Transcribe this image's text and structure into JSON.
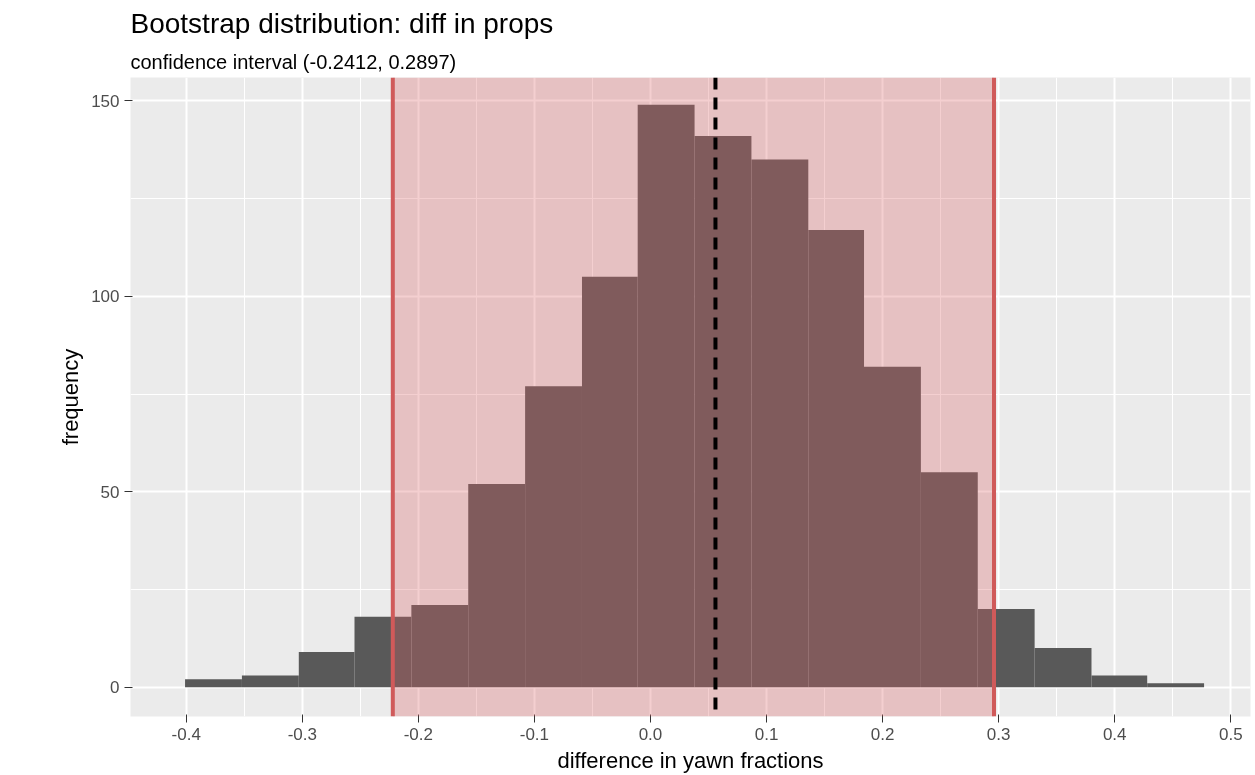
{
  "chart_data": {
    "type": "histogram",
    "title": "Bootstrap distribution: diff in props",
    "subtitle": "confidence interval (-0.2412, 0.2897)",
    "xlabel": "difference in yawn fractions",
    "ylabel": "frequency",
    "bins": [
      -0.401,
      -0.352,
      -0.303,
      -0.255,
      -0.206,
      -0.157,
      -0.108,
      -0.059,
      -0.011,
      0.038,
      0.087,
      0.136,
      0.184,
      0.233,
      0.282,
      0.331,
      0.38,
      0.428,
      0.477
    ],
    "values": [
      2,
      3,
      9,
      18,
      21,
      52,
      77,
      105,
      149,
      141,
      135,
      117,
      82,
      55,
      20,
      10,
      3,
      1
    ],
    "color": "#595959",
    "xlim": [
      -0.448,
      0.517
    ],
    "ylim": [
      -7.5,
      156
    ],
    "xticks": [
      -0.4,
      -0.3,
      -0.2,
      -0.1,
      {
        "value": 0,
        "label": "0.0"
      },
      0.1,
      0.2,
      0.3,
      0.4,
      0.5
    ],
    "yticks": [
      0,
      50,
      100,
      150
    ],
    "bands": [
      {
        "axis": "x",
        "from": -0.222,
        "to": 0.296,
        "color": "#db5f62"
      }
    ],
    "ref_lines": [
      {
        "axis": "x",
        "value": -0.222,
        "color": "#d05a5a",
        "line_style": "solid"
      },
      {
        "axis": "x",
        "value": 0.296,
        "color": "#d05a5a",
        "line_style": "solid"
      },
      {
        "axis": "x",
        "value": 0.056,
        "color": "#000000",
        "line_style": "dashed"
      }
    ],
    "grid": true
  }
}
